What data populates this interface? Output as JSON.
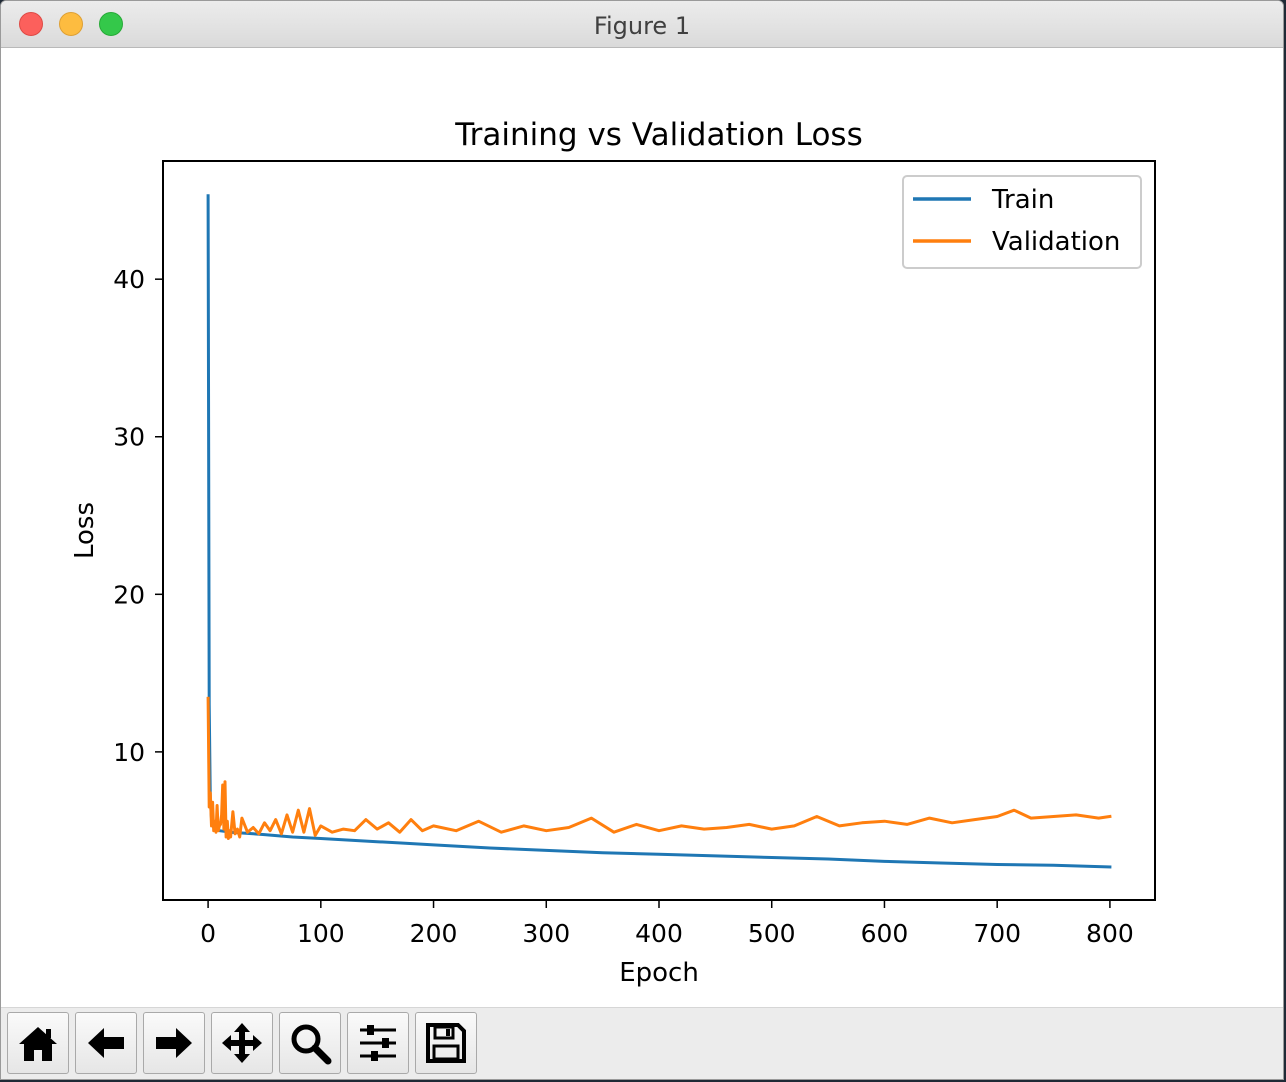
{
  "window": {
    "title": "Figure 1"
  },
  "toolbar": {
    "buttons": [
      {
        "name": "home-button",
        "icon": "home-icon"
      },
      {
        "name": "back-button",
        "icon": "arrow-left-icon"
      },
      {
        "name": "forward-button",
        "icon": "arrow-right-icon"
      },
      {
        "name": "pan-button",
        "icon": "move-icon"
      },
      {
        "name": "zoom-button",
        "icon": "magnifier-icon"
      },
      {
        "name": "configure-subplots-button",
        "icon": "sliders-icon"
      },
      {
        "name": "save-button",
        "icon": "floppy-disk-icon"
      }
    ]
  },
  "chart_data": {
    "type": "line",
    "title": "Training vs Validation Loss",
    "xlabel": "Epoch",
    "ylabel": "Loss",
    "xlim": [
      -40,
      840
    ],
    "ylim": [
      0.6,
      47.5
    ],
    "xticks": [
      0,
      100,
      200,
      300,
      400,
      500,
      600,
      700,
      800
    ],
    "yticks": [
      10,
      20,
      30,
      40
    ],
    "grid": false,
    "legend": "top-right",
    "series": [
      {
        "name": "Train",
        "color": "#1f77b4",
        "x": [
          0,
          1,
          2,
          3,
          5,
          10,
          20,
          30,
          40,
          50,
          75,
          100,
          125,
          150,
          175,
          200,
          250,
          300,
          350,
          400,
          450,
          500,
          550,
          600,
          650,
          700,
          750,
          800
        ],
        "y": [
          45.3,
          13.0,
          7.0,
          5.8,
          5.2,
          5.0,
          4.9,
          4.85,
          4.8,
          4.75,
          4.6,
          4.5,
          4.4,
          4.3,
          4.2,
          4.1,
          3.9,
          3.75,
          3.6,
          3.5,
          3.4,
          3.3,
          3.2,
          3.05,
          2.95,
          2.85,
          2.8,
          2.7
        ]
      },
      {
        "name": "Validation",
        "color": "#ff7f0e",
        "x": [
          0,
          1,
          2,
          3,
          4,
          5,
          6,
          7,
          8,
          9,
          10,
          11,
          12,
          13,
          14,
          15,
          16,
          17,
          18,
          19,
          20,
          22,
          24,
          26,
          28,
          30,
          35,
          40,
          45,
          50,
          55,
          60,
          65,
          70,
          75,
          80,
          85,
          90,
          95,
          100,
          110,
          120,
          130,
          140,
          150,
          160,
          170,
          180,
          190,
          200,
          220,
          240,
          260,
          280,
          300,
          320,
          340,
          360,
          380,
          400,
          420,
          440,
          460,
          480,
          500,
          520,
          540,
          560,
          580,
          600,
          620,
          640,
          660,
          680,
          700,
          715,
          730,
          750,
          770,
          790,
          800
        ],
        "y": [
          13.4,
          6.5,
          7.4,
          5.3,
          6.8,
          5.0,
          5.6,
          4.9,
          6.6,
          5.0,
          5.3,
          5.4,
          6.0,
          7.9,
          5.1,
          8.1,
          4.6,
          5.6,
          4.5,
          5.0,
          4.6,
          6.2,
          4.8,
          5.1,
          4.6,
          5.8,
          4.9,
          5.2,
          4.8,
          5.5,
          5.0,
          5.7,
          4.8,
          6.0,
          4.9,
          6.3,
          4.9,
          6.4,
          4.7,
          5.3,
          4.9,
          5.1,
          5.0,
          5.7,
          5.1,
          5.5,
          4.9,
          5.7,
          5.0,
          5.3,
          5.0,
          5.6,
          4.9,
          5.3,
          5.0,
          5.2,
          5.8,
          4.9,
          5.4,
          5.0,
          5.3,
          5.1,
          5.2,
          5.4,
          5.1,
          5.3,
          5.9,
          5.3,
          5.5,
          5.6,
          5.4,
          5.8,
          5.5,
          5.7,
          5.9,
          6.3,
          5.8,
          5.9,
          6.0,
          5.8,
          5.9
        ]
      }
    ]
  }
}
